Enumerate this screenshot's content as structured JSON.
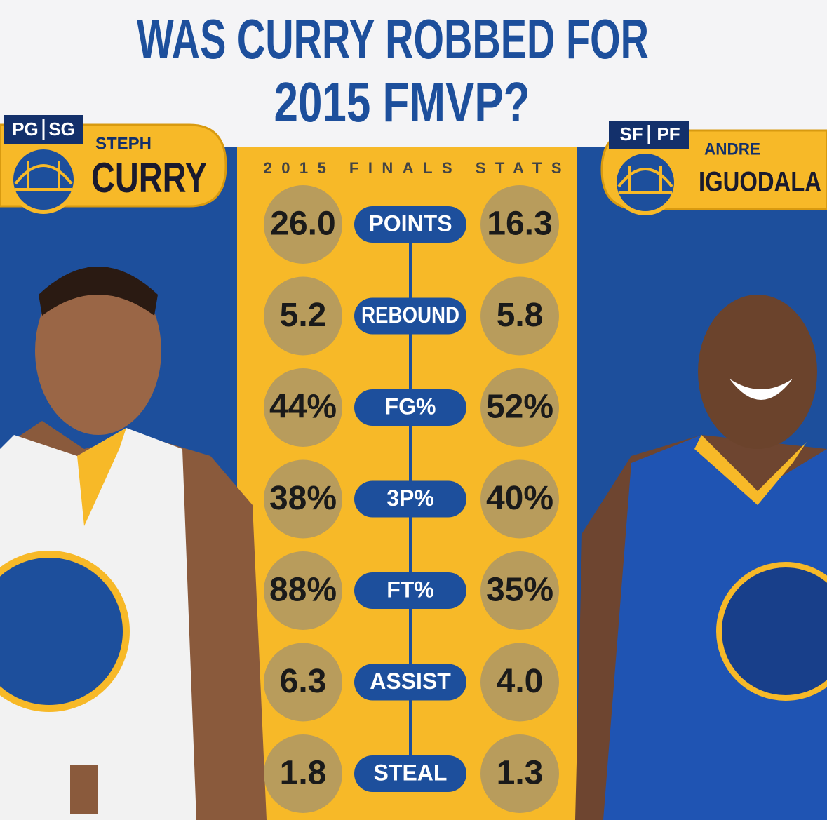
{
  "header": {
    "title_lines": [
      "WAS CURRY ROBBED FOR",
      "2015 FMVP?"
    ],
    "subtitle": "2015 FINALS STATS"
  },
  "players": [
    {
      "positions": [
        "PG",
        "SG"
      ],
      "first_name": "STEPH",
      "last_name": "CURRY"
    },
    {
      "positions": [
        "SF",
        "PF"
      ],
      "first_name": "ANDRE",
      "last_name": "IGUODALA"
    }
  ],
  "stats": [
    {
      "label": "POINTS",
      "left": "26.0",
      "right": "16.3"
    },
    {
      "label": "REBOUND",
      "left": "5.2",
      "right": "5.8"
    },
    {
      "label": "FG%",
      "left": "44%",
      "right": "52%"
    },
    {
      "label": "3P%",
      "left": "38%",
      "right": "40%"
    },
    {
      "label": "FT%",
      "left": "88%",
      "right": "35%"
    },
    {
      "label": "ASSIST",
      "left": "6.3",
      "right": "4.0"
    },
    {
      "label": "STEAL",
      "left": "1.8",
      "right": "1.3"
    }
  ]
}
